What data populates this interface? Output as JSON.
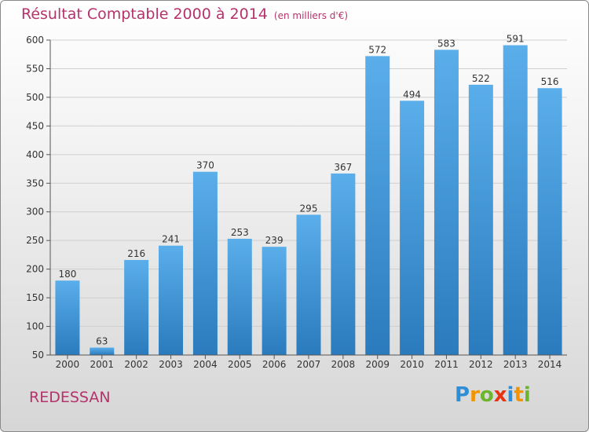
{
  "title": "Résultat Comptable 2000 à 2014",
  "unit_note": "(en milliers d'€)",
  "place": "REDESSAN",
  "logo": {
    "letters": [
      "P",
      "r",
      "o",
      "x",
      "i",
      "t",
      "i"
    ],
    "colors": [
      "#2f8fd6",
      "#f29400",
      "#6cb52d",
      "#e63312",
      "#2f8fd6",
      "#f29400",
      "#6cb52d"
    ]
  },
  "colors": {
    "bar_light": "#5aaeea",
    "bar_dark": "#2a7bbd",
    "grid": "#cfcfcf",
    "title": "#b5336b"
  },
  "chart_data": {
    "type": "bar",
    "categories": [
      "2000",
      "2001",
      "2002",
      "2003",
      "2004",
      "2005",
      "2006",
      "2007",
      "2008",
      "2009",
      "2010",
      "2011",
      "2012",
      "2013",
      "2014"
    ],
    "values": [
      180,
      63,
      216,
      241,
      370,
      253,
      239,
      295,
      367,
      572,
      494,
      583,
      522,
      591,
      516
    ],
    "value_labels": [
      "180",
      "63",
      "216",
      "241",
      "370",
      "253",
      "239",
      "295",
      "367",
      "572",
      "494",
      "583",
      "522",
      "591",
      "516"
    ],
    "title": "Résultat Comptable 2000 à 2014",
    "xlabel": "",
    "ylabel": "",
    "ylim": [
      50,
      600
    ],
    "yticks": [
      50,
      100,
      150,
      200,
      250,
      300,
      350,
      400,
      450,
      500,
      550,
      600
    ],
    "ytick_labels": [
      "50",
      "100",
      "150",
      "200",
      "250",
      "300",
      "350",
      "400",
      "450",
      "500",
      "550",
      "600"
    ],
    "grid": true,
    "legend": "none"
  }
}
